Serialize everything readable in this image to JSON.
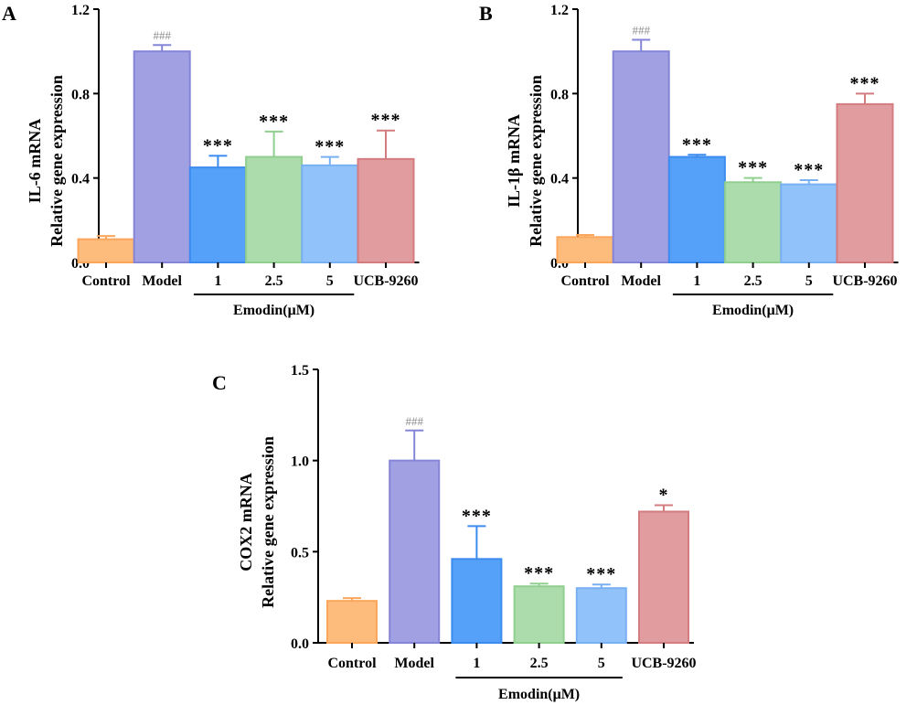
{
  "figure": {
    "panels": [
      {
        "letter": "A",
        "ylabel_line1": "IL-6 mRNA",
        "ylabel_line2": "Relative gene expression"
      },
      {
        "letter": "B",
        "ylabel_line1": "IL-1β mRNA",
        "ylabel_line2": "Relative gene expression"
      },
      {
        "letter": "C",
        "ylabel_line1": "COX2 mRNA",
        "ylabel_line2": "Relative gene expression"
      }
    ]
  },
  "colors": {
    "bars": [
      {
        "fill": "#fdbc7c",
        "stroke": "#fca65c"
      },
      {
        "fill": "#a0a0e2",
        "stroke": "#8585d8"
      },
      {
        "fill": "#55a0f8",
        "stroke": "#3c8cf0"
      },
      {
        "fill": "#acdcac",
        "stroke": "#90cf90"
      },
      {
        "fill": "#92c2fa",
        "stroke": "#78b1f3"
      },
      {
        "fill": "#e09c9e",
        "stroke": "#d47d80"
      }
    ]
  },
  "chart_data": [
    {
      "type": "bar",
      "panel": "A",
      "title": "",
      "categories": [
        "Control",
        "Model",
        "1",
        "2.5",
        "5",
        "UCB-9260"
      ],
      "values": [
        0.11,
        1.0,
        0.45,
        0.5,
        0.46,
        0.49
      ],
      "errors": [
        0.015,
        0.03,
        0.055,
        0.12,
        0.04,
        0.135
      ],
      "annotations": [
        "",
        "###",
        "***",
        "***",
        "***",
        "***"
      ],
      "xlabel": "Emodin(μM)",
      "group_label": "Emodin(μM)",
      "group_range": [
        2,
        4
      ],
      "ylabel": "IL-6 mRNA Relative gene expression",
      "ylim": [
        0,
        1.2
      ],
      "yticks": [
        "0.0",
        "0.4",
        "0.8",
        "1.2"
      ],
      "ytick_values": [
        0,
        0.4,
        0.8,
        1.2
      ],
      "grid": false
    },
    {
      "type": "bar",
      "panel": "B",
      "title": "",
      "categories": [
        "Control",
        "Model",
        "1",
        "2.5",
        "5",
        "UCB-9260"
      ],
      "values": [
        0.12,
        1.0,
        0.5,
        0.38,
        0.37,
        0.75
      ],
      "errors": [
        0.01,
        0.055,
        0.01,
        0.02,
        0.02,
        0.05
      ],
      "annotations": [
        "",
        "###",
        "***",
        "***",
        "***",
        "***"
      ],
      "xlabel": "Emodin(μM)",
      "group_label": "Emodin(μM)",
      "group_range": [
        2,
        4
      ],
      "ylabel": "IL-1β mRNA Relative gene expression",
      "ylim": [
        0,
        1.2
      ],
      "yticks": [
        "0.0",
        "0.4",
        "0.8",
        "1.2"
      ],
      "ytick_values": [
        0,
        0.4,
        0.8,
        1.2
      ],
      "grid": false
    },
    {
      "type": "bar",
      "panel": "C",
      "title": "",
      "categories": [
        "Control",
        "Model",
        "1",
        "2.5",
        "5",
        "UCB-9260"
      ],
      "values": [
        0.23,
        1.0,
        0.46,
        0.31,
        0.3,
        0.72
      ],
      "errors": [
        0.015,
        0.165,
        0.18,
        0.015,
        0.02,
        0.035
      ],
      "annotations": [
        "",
        "###",
        "***",
        "***",
        "***",
        "*"
      ],
      "xlabel": "Emodin(μM)",
      "group_label": "Emodin(μM)",
      "group_range": [
        2,
        4
      ],
      "ylabel": "COX2 mRNA Relative gene expression",
      "ylim": [
        0,
        1.5
      ],
      "yticks": [
        "0.0",
        "0.5",
        "1.0",
        "1.5"
      ],
      "ytick_values": [
        0,
        0.5,
        1.0,
        1.5
      ],
      "grid": false
    }
  ]
}
